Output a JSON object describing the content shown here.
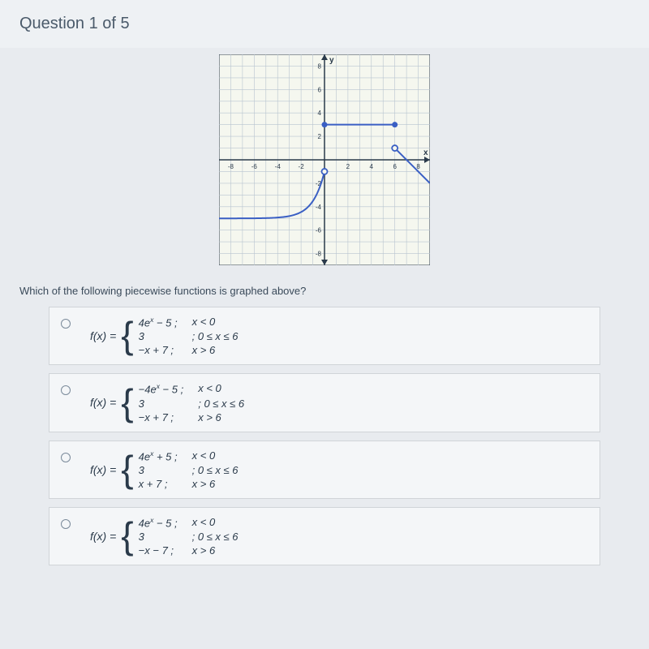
{
  "header": {
    "title": "Question 1 of 5"
  },
  "question": "Which of the following piecewise functions is graphed above?",
  "fx_label": "f(x)  =",
  "graph": {
    "xmin": -9,
    "xmax": 9,
    "ymin": -9,
    "ymax": 9,
    "tick_step": 2,
    "grid_color": "#b8c4d0",
    "axis_color": "#2a3a4a",
    "background": "#f5f7ef",
    "curve_color": "#3a5fc4",
    "line_width": 2,
    "x_ticks": [
      -8,
      -6,
      -4,
      -2,
      2,
      4,
      6,
      8
    ],
    "y_ticks": [
      -8,
      -6,
      -4,
      -2,
      2,
      4,
      6,
      8
    ],
    "segments": [
      {
        "type": "exp",
        "expr": "4*e^x - 5",
        "domain": [
          -9,
          0
        ],
        "end_open": [
          0,
          -1
        ]
      },
      {
        "type": "const",
        "y": 3,
        "domain": [
          0,
          6
        ],
        "endpoints": [
          [
            0,
            3,
            "closed"
          ],
          [
            6,
            3,
            "closed"
          ]
        ]
      },
      {
        "type": "linear",
        "expr": "-x + 7",
        "domain": [
          6,
          9
        ],
        "start_open": [
          6,
          1
        ]
      }
    ]
  },
  "options": [
    {
      "pieces": [
        {
          "expr": "4e<sup>x</sup> − 5 ;",
          "cond": "x < 0"
        },
        {
          "expr": "3",
          "cond": "; 0 ≤ x ≤ 6"
        },
        {
          "expr": "−x + 7 ;",
          "cond": "x > 6"
        }
      ]
    },
    {
      "pieces": [
        {
          "expr": "−4e<sup>x</sup> − 5 ;",
          "cond": "x < 0"
        },
        {
          "expr": "3",
          "cond": "; 0 ≤ x ≤ 6"
        },
        {
          "expr": "−x + 7 ;",
          "cond": "x > 6"
        }
      ]
    },
    {
      "pieces": [
        {
          "expr": "4e<sup>x</sup> + 5 ;",
          "cond": "x < 0"
        },
        {
          "expr": "3",
          "cond": "; 0 ≤ x ≤ 6"
        },
        {
          "expr": "x + 7 ;",
          "cond": "x > 6"
        }
      ]
    },
    {
      "pieces": [
        {
          "expr": "4e<sup>x</sup> − 5 ;",
          "cond": "x < 0"
        },
        {
          "expr": "3",
          "cond": "; 0 ≤ x ≤ 6"
        },
        {
          "expr": "−x − 7 ;",
          "cond": "x > 6"
        }
      ]
    }
  ]
}
